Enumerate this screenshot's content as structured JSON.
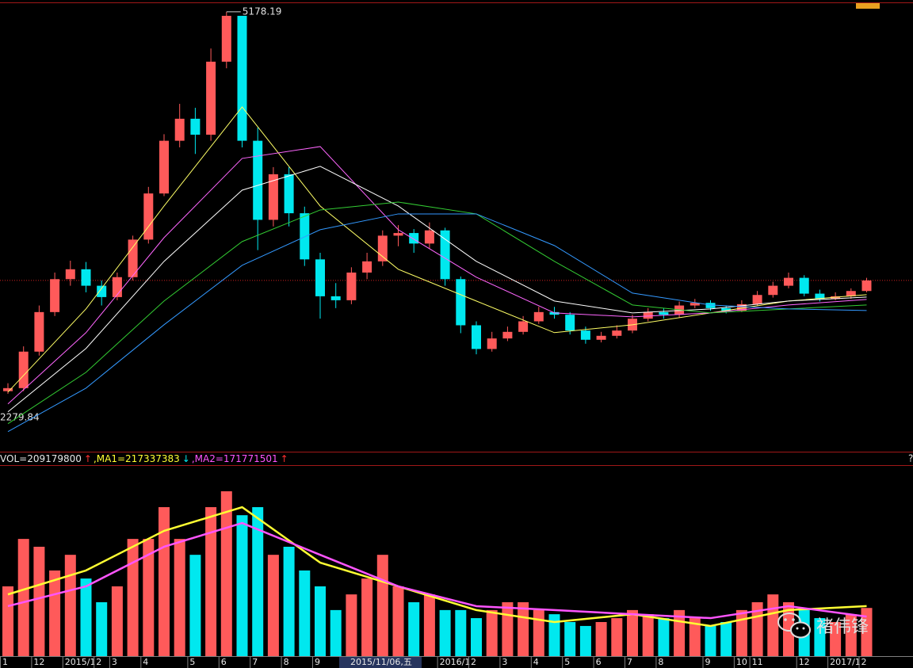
{
  "chart_data": [
    {
      "type": "candlestick",
      "open": [
        2300,
        2323,
        2600,
        2900,
        3150,
        3225,
        3100,
        3014,
        3165,
        3450,
        3800,
        4200,
        4367,
        4246,
        4800,
        5148,
        4200,
        3600,
        3946,
        3650,
        3300,
        3020,
        2990,
        3200,
        3285,
        3480,
        3500,
        3420,
        3520,
        3150,
        2800,
        2620,
        2700,
        2750,
        2830,
        2900,
        2880,
        2760,
        2690,
        2720,
        2760,
        2850,
        2900,
        2880,
        2950,
        2970,
        2930,
        2910,
        2960,
        3030,
        3100,
        3160,
        3040,
        3000,
        3020,
        3060
      ],
      "high": [
        2360,
        2640,
        2950,
        3200,
        3290,
        3280,
        3140,
        3200,
        3480,
        3850,
        4250,
        4480,
        4450,
        4900,
        5178.19,
        5120,
        4300,
        4000,
        4000,
        3700,
        3350,
        3120,
        3240,
        3350,
        3520,
        3560,
        3530,
        3580,
        3540,
        3170,
        2830,
        2750,
        2790,
        2870,
        2940,
        2940,
        2900,
        2790,
        2750,
        2800,
        2880,
        2930,
        2930,
        2980,
        3000,
        2990,
        2950,
        2990,
        3060,
        3130,
        3200,
        3180,
        3070,
        3050,
        3080,
        3160
      ],
      "low": [
        2279.84,
        2300,
        2570,
        2870,
        3100,
        3050,
        2950,
        2990,
        3140,
        3420,
        3780,
        4150,
        4100,
        4200,
        4750,
        4150,
        3370,
        3550,
        3550,
        3250,
        2850,
        2930,
        2960,
        3150,
        3250,
        3400,
        3350,
        3380,
        3100,
        2740,
        2580,
        2600,
        2680,
        2730,
        2810,
        2850,
        2730,
        2660,
        2670,
        2700,
        2740,
        2830,
        2850,
        2860,
        2930,
        2910,
        2890,
        2900,
        2950,
        3010,
        3080,
        3020,
        2980,
        2990,
        3000,
        3050
      ],
      "close": [
        2323,
        2600,
        2900,
        3150,
        3225,
        3100,
        3014,
        3165,
        3450,
        3800,
        4200,
        4367,
        4246,
        4800,
        5148,
        4200,
        3600,
        3946,
        3650,
        3300,
        3020,
        2990,
        3200,
        3285,
        3480,
        3500,
        3420,
        3520,
        3150,
        2800,
        2620,
        2700,
        2750,
        2830,
        2900,
        2880,
        2760,
        2690,
        2720,
        2760,
        2850,
        2900,
        2880,
        2950,
        2970,
        2930,
        2910,
        2960,
        3030,
        3100,
        3160,
        3040,
        3000,
        3020,
        3060,
        3140
      ],
      "up_color": "#ff5a5a",
      "down_color": "#00e8ef",
      "last_line_color": "#d02020",
      "ylim": [
        1871,
        5268
      ],
      "series": [
        {
          "color": "#ffff66",
          "x": [
            0,
            5,
            10,
            15,
            20,
            25,
            30,
            35,
            40,
            45,
            50,
            55
          ],
          "values": [
            2293,
            2924,
            3705,
            4457,
            3705,
            3225,
            2984,
            2744,
            2804,
            2894,
            2984,
            3032
          ]
        },
        {
          "color": "#ff66ff",
          "x": [
            0,
            5,
            10,
            15,
            20,
            25,
            30,
            35,
            40,
            45,
            50,
            55
          ],
          "values": [
            2203,
            2744,
            3465,
            4066,
            4156,
            3525,
            3165,
            2894,
            2864,
            2894,
            2954,
            2996
          ]
        },
        {
          "color": "#ffffff",
          "x": [
            0,
            5,
            10,
            15,
            20,
            25,
            30,
            35,
            40,
            45,
            50,
            55
          ],
          "values": [
            2143,
            2624,
            3285,
            3825,
            4006,
            3705,
            3285,
            2984,
            2894,
            2924,
            2984,
            3014
          ]
        },
        {
          "color": "#33cc33",
          "x": [
            0,
            5,
            10,
            15,
            20,
            25,
            30,
            35,
            40,
            45,
            50,
            55
          ],
          "values": [
            2053,
            2443,
            2984,
            3435,
            3675,
            3735,
            3645,
            3285,
            2954,
            2894,
            2924,
            2954
          ]
        },
        {
          "color": "#3399ff",
          "x": [
            0,
            5,
            10,
            15,
            20,
            25,
            30,
            35,
            40,
            45,
            50,
            55
          ],
          "values": [
            1993,
            2323,
            2804,
            3255,
            3525,
            3645,
            3645,
            3405,
            3044,
            2954,
            2924,
            2912
          ]
        }
      ]
    },
    {
      "type": "bar",
      "categories": [
        "1",
        null,
        "12",
        null,
        "2015/1",
        null,
        "2",
        "3",
        null,
        "4",
        null,
        null,
        "5",
        null,
        "6",
        null,
        "7",
        null,
        "8",
        null,
        "9",
        null,
        null,
        null,
        null,
        null,
        null,
        null,
        "2016/1",
        null,
        "2",
        null,
        "3",
        null,
        "4",
        null,
        "5",
        null,
        "6",
        null,
        "7",
        null,
        "8",
        null,
        null,
        "9",
        null,
        "10",
        "11",
        null,
        null,
        "12",
        null,
        "2017/1",
        null,
        "2"
      ],
      "values": [
        303000000,
        509000000,
        475000000,
        372000000,
        440000000,
        337000000,
        234000000,
        303000000,
        509000000,
        509000000,
        647000000,
        509000000,
        440000000,
        647000000,
        716000000,
        612000000,
        647000000,
        440000000,
        475000000,
        372000000,
        303000000,
        200000000,
        268000000,
        337000000,
        440000000,
        303000000,
        234000000,
        268000000,
        200000000,
        200000000,
        165000000,
        200000000,
        234000000,
        234000000,
        200000000,
        182000000,
        148000000,
        131000000,
        148000000,
        165000000,
        200000000,
        182000000,
        165000000,
        200000000,
        165000000,
        131000000,
        148000000,
        200000000,
        234000000,
        268000000,
        234000000,
        200000000,
        165000000,
        148000000,
        182000000,
        209179800
      ],
      "ylim": [
        0,
        826000000
      ],
      "series": [
        {
          "color": "#ffff33",
          "x": [
            0,
            5,
            10,
            15,
            20,
            25,
            30,
            35,
            40,
            45,
            50,
            55
          ],
          "values": [
            268000000,
            372000000,
            544000000,
            647000000,
            406000000,
            303000000,
            200000000,
            148000000,
            182000000,
            131000000,
            200000000,
            217337383
          ]
        },
        {
          "color": "#ff55ff",
          "x": [
            0,
            5,
            10,
            15,
            20,
            25,
            30,
            35,
            40,
            45,
            50,
            55
          ],
          "values": [
            217000000,
            303000000,
            475000000,
            578000000,
            440000000,
            303000000,
            217000000,
            200000000,
            182000000,
            165000000,
            217000000,
            171771501
          ]
        }
      ],
      "header": {
        "vol": "VOL=",
        "vol_arrow": "↑",
        "ma1": ",MA1=",
        "ma1_arrow": "↓",
        "ma2": ",MA2=",
        "ma2_arrow": "↑"
      }
    }
  ],
  "cursor_label": "2015/11/06,五",
  "help_mark": "?",
  "watermark": "褚伟锋"
}
